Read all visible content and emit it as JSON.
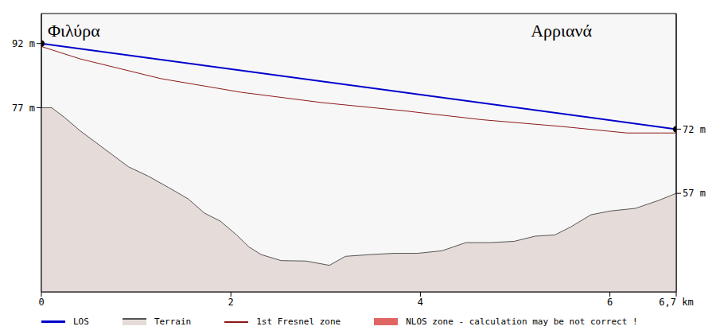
{
  "chart_data": {
    "type": "line",
    "annotations": [
      "Φιλύρα",
      "Αρριανά"
    ],
    "xlim": [
      0,
      6.7
    ],
    "xticks": [
      0,
      2,
      4,
      6,
      {
        "value": 6.7,
        "label": "6,7 km"
      }
    ],
    "ylim": [
      34,
      99
    ],
    "yticks": [
      {
        "value": 92,
        "label": "92 m"
      },
      {
        "value": 77,
        "label": "77 m"
      }
    ],
    "y2lim": [
      34,
      99
    ],
    "y2ticks": [
      {
        "value": 72,
        "label": "72 m"
      },
      {
        "value": 57,
        "label": "57 m"
      }
    ],
    "grid": false,
    "series": [
      {
        "name": "LOS",
        "type": "line",
        "color": "#0000cc",
        "marker": "circle",
        "axis": "y2",
        "x": [
          0,
          6.7
        ],
        "values": [
          92,
          72
        ]
      },
      {
        "name": "Terrain",
        "type": "area",
        "color": "#e5dcd9",
        "x": [
          0,
          0.11,
          0.24,
          0.41,
          0.58,
          0.75,
          0.92,
          1.13,
          1.34,
          1.55,
          1.72,
          1.89,
          2.06,
          2.19,
          2.32,
          2.53,
          2.79,
          3.04,
          3.21,
          3.47,
          3.72,
          3.97,
          4.23,
          4.48,
          4.74,
          4.99,
          5.21,
          5.42,
          5.59,
          5.8,
          6.01,
          6.27,
          6.52,
          6.7
        ],
        "values": [
          77,
          77,
          74.8,
          71.6,
          68.8,
          66,
          63.2,
          61,
          58.4,
          55.7,
          52.4,
          50.5,
          47.3,
          44.5,
          42.7,
          41.3,
          41.2,
          40.2,
          42.3,
          42.7,
          43,
          43,
          43.6,
          45.5,
          45.5,
          45.8,
          47,
          47.3,
          49.2,
          52,
          52.9,
          53.5,
          55.4,
          57
        ]
      },
      {
        "name": "1st Fresnel zone",
        "type": "line",
        "color": "#8b1a1a",
        "x": [
          0,
          0.41,
          1.26,
          2.11,
          2.96,
          3.82,
          4.65,
          5.5,
          6.18,
          6.7
        ],
        "values": [
          91.3,
          88.4,
          83.8,
          80.6,
          78.2,
          76.3,
          74.2,
          72.6,
          71.1,
          71.1
        ]
      },
      {
        "name": "NLOS zone - calculation may be not correct !",
        "type": "area",
        "color": "#e06666",
        "x": [],
        "values": []
      }
    ]
  }
}
